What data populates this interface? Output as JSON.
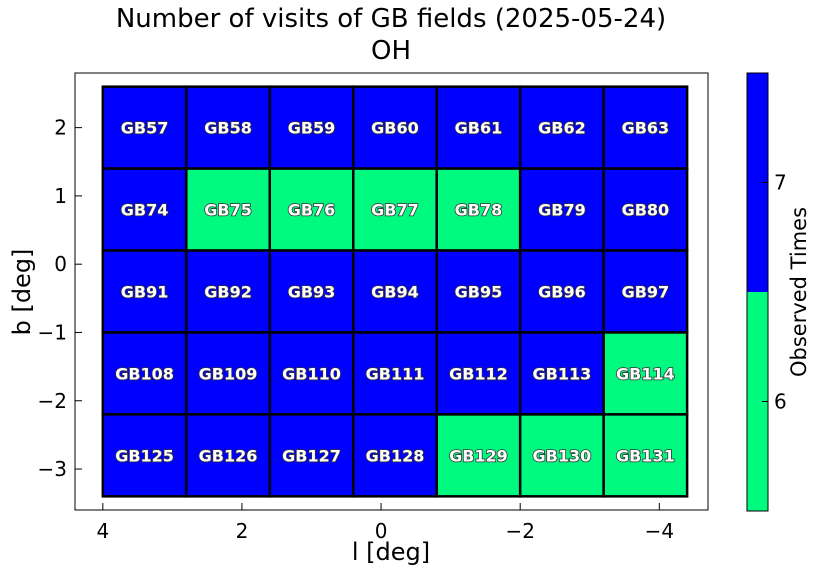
{
  "chart_data": {
    "type": "heatmap",
    "title": "Number of visits of GB fields (2025-05-24)",
    "subtitle": "OH",
    "xlabel": "l [deg]",
    "ylabel": "b [deg]",
    "xlim": [
      4.4,
      -4.7
    ],
    "ylim": [
      -3.6,
      2.8
    ],
    "xticks": [
      4,
      2,
      0,
      -2,
      -4
    ],
    "xtick_labels": [
      "4",
      "2",
      "0",
      "−2",
      "−4"
    ],
    "yticks": [
      2,
      1,
      0,
      -1,
      -2,
      -3
    ],
    "ytick_labels": [
      "2",
      "1",
      "0",
      "−1",
      "−2",
      "−3"
    ],
    "x_edges": [
      4.0,
      2.8,
      1.6,
      0.4,
      -0.8,
      -2.0,
      -3.2,
      -4.4
    ],
    "y_edges": [
      2.6,
      1.4,
      0.2,
      -1.0,
      -2.2,
      -3.4
    ],
    "rows": [
      {
        "fields": [
          "GB57",
          "GB58",
          "GB59",
          "GB60",
          "GB61",
          "GB62",
          "GB63"
        ],
        "visits": [
          7,
          7,
          7,
          7,
          7,
          7,
          7
        ]
      },
      {
        "fields": [
          "GB74",
          "GB75",
          "GB76",
          "GB77",
          "GB78",
          "GB79",
          "GB80"
        ],
        "visits": [
          7,
          6,
          6,
          6,
          6,
          7,
          7
        ]
      },
      {
        "fields": [
          "GB91",
          "GB92",
          "GB93",
          "GB94",
          "GB95",
          "GB96",
          "GB97"
        ],
        "visits": [
          7,
          7,
          7,
          7,
          7,
          7,
          7
        ]
      },
      {
        "fields": [
          "GB108",
          "GB109",
          "GB110",
          "GB111",
          "GB112",
          "GB113",
          "GB114"
        ],
        "visits": [
          7,
          7,
          7,
          7,
          7,
          7,
          6
        ]
      },
      {
        "fields": [
          "GB125",
          "GB126",
          "GB127",
          "GB128",
          "GB129",
          "GB130",
          "GB131"
        ],
        "visits": [
          7,
          7,
          7,
          7,
          6,
          6,
          6
        ]
      }
    ],
    "colorbar": {
      "label": "Observed Times",
      "range": [
        5.5,
        7.5
      ],
      "ticks": [
        6,
        7
      ],
      "tick_labels": [
        "6",
        "7"
      ],
      "levels": [
        {
          "value": 6,
          "from": 5.5,
          "to": 6.5,
          "color": "#00fa7f"
        },
        {
          "value": 7,
          "from": 6.5,
          "to": 7.5,
          "color": "#0000ff"
        }
      ]
    },
    "grid": false
  }
}
